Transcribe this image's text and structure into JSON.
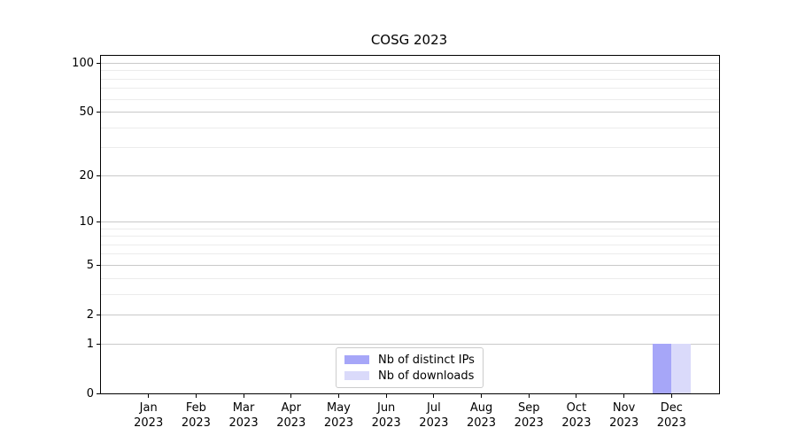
{
  "chart_data": {
    "type": "bar",
    "title": "COSG 2023",
    "categories": [
      "Jan 2023",
      "Feb 2023",
      "Mar 2023",
      "Apr 2023",
      "May 2023",
      "Jun 2023",
      "Jul 2023",
      "Aug 2023",
      "Sep 2023",
      "Oct 2023",
      "Nov 2023",
      "Dec 2023"
    ],
    "x_axis": {
      "months": [
        "Jan",
        "Feb",
        "Mar",
        "Apr",
        "May",
        "Jun",
        "Jul",
        "Aug",
        "Sep",
        "Oct",
        "Nov",
        "Dec"
      ],
      "year": "2023"
    },
    "y_axis": {
      "scale": "log1p",
      "major_ticks": [
        0,
        1,
        2,
        5,
        10,
        20,
        50,
        100
      ],
      "minor_ticks": [
        3,
        4,
        6,
        7,
        8,
        9,
        30,
        40,
        60,
        70,
        80,
        90
      ],
      "ylim": [
        0,
        111
      ]
    },
    "series": [
      {
        "name": "Nb of distinct IPs",
        "color": "#a6a6f8",
        "values": [
          0,
          0,
          0,
          0,
          0,
          0,
          0,
          0,
          0,
          0,
          0,
          1
        ]
      },
      {
        "name": "Nb of downloads",
        "color": "#dadafa",
        "values": [
          0,
          0,
          0,
          0,
          0,
          0,
          0,
          0,
          0,
          0,
          0,
          1
        ]
      }
    ],
    "legend": {
      "position": "lower center",
      "entries": [
        "Nb of distinct IPs",
        "Nb of downloads"
      ]
    },
    "grid": {
      "major_color": "#c9c9c9",
      "minor_color": "#ececec"
    },
    "bar_layout": {
      "group_width_fraction": 0.8
    }
  }
}
